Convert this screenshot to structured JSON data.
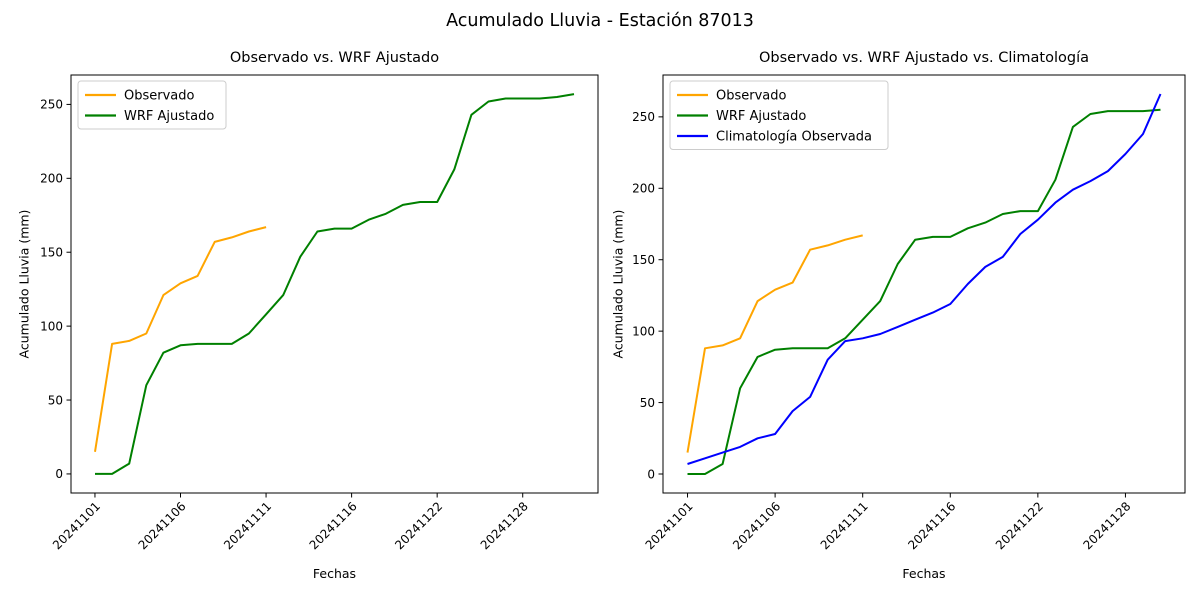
{
  "figure": {
    "title": "Acumulado Lluvia - Estación 87013",
    "background": "#ffffff"
  },
  "colors": {
    "observado": "#FFA500",
    "wrf_ajustado": "#008000",
    "climatologia": "#0000FF",
    "axes": "#000000",
    "legend_border": "#cccccc"
  },
  "chart_data": [
    {
      "type": "line",
      "title": "Observado vs. WRF Ajustado",
      "xlabel": "Fechas",
      "ylabel": "Acumulado Lluvia (mm)",
      "x_tick_indices": [
        0,
        5,
        10,
        15,
        20,
        25
      ],
      "x_tick_labels": [
        "20241101",
        "20241106",
        "20241111",
        "20241116",
        "20241122",
        "20241128"
      ],
      "y_ticks": [
        0,
        50,
        100,
        150,
        200,
        250
      ],
      "xlim": [
        -1.4,
        29.4
      ],
      "ylim": [
        -12.9,
        269.9
      ],
      "grid": false,
      "legend_position": "upper-left",
      "series": [
        {
          "name": "Observado",
          "color": "#FFA500",
          "x": [
            0,
            1,
            2,
            3,
            4,
            5,
            6,
            7,
            8,
            9,
            10
          ],
          "values": [
            15,
            88,
            90,
            95,
            121,
            129,
            134,
            157,
            160,
            164,
            167
          ]
        },
        {
          "name": "WRF Ajustado",
          "color": "#008000",
          "x": [
            0,
            1,
            2,
            3,
            4,
            5,
            6,
            7,
            8,
            9,
            10,
            11,
            12,
            13,
            14,
            15,
            16,
            17,
            18,
            19,
            20,
            21,
            22,
            23,
            24,
            25,
            26,
            27,
            28
          ],
          "values": [
            0,
            0,
            7,
            60,
            82,
            87,
            88,
            88,
            88,
            95,
            108,
            121,
            147,
            164,
            166,
            166,
            172,
            176,
            182,
            184,
            184,
            206,
            243,
            252,
            254,
            254,
            254,
            255,
            257
          ]
        }
      ]
    },
    {
      "type": "line",
      "title": "Observado vs. WRF Ajustado vs. Climatología",
      "xlabel": "Fechas",
      "ylabel": "Acumulado Lluvia (mm)",
      "x_tick_indices": [
        0,
        5,
        10,
        15,
        20,
        25
      ],
      "x_tick_labels": [
        "20241101",
        "20241106",
        "20241111",
        "20241116",
        "20241122",
        "20241128"
      ],
      "y_ticks": [
        0,
        50,
        100,
        150,
        200,
        250
      ],
      "xlim": [
        -1.4,
        28.4
      ],
      "ylim": [
        -13.3,
        279.3
      ],
      "grid": false,
      "legend_position": "upper-left",
      "series": [
        {
          "name": "Observado",
          "color": "#FFA500",
          "x": [
            0,
            1,
            2,
            3,
            4,
            5,
            6,
            7,
            8,
            9,
            10
          ],
          "values": [
            15,
            88,
            90,
            95,
            121,
            129,
            134,
            157,
            160,
            164,
            167
          ]
        },
        {
          "name": "WRF Ajustado",
          "color": "#008000",
          "x": [
            0,
            1,
            2,
            3,
            4,
            5,
            6,
            7,
            8,
            9,
            10,
            11,
            12,
            13,
            14,
            15,
            16,
            17,
            18,
            19,
            20,
            21,
            22,
            23,
            24,
            25,
            26,
            27
          ],
          "values": [
            0,
            0,
            7,
            60,
            82,
            87,
            88,
            88,
            88,
            95,
            108,
            121,
            147,
            164,
            166,
            166,
            172,
            176,
            182,
            184,
            184,
            206,
            243,
            252,
            254,
            254,
            254,
            255
          ]
        },
        {
          "name": "Climatología Observada",
          "color": "#0000FF",
          "x": [
            0,
            1,
            2,
            3,
            4,
            5,
            6,
            7,
            8,
            9,
            10,
            11,
            12,
            13,
            14,
            15,
            16,
            17,
            18,
            19,
            20,
            21,
            22,
            23,
            24,
            25,
            26,
            27
          ],
          "values": [
            7,
            11,
            15,
            19,
            25,
            28,
            44,
            54,
            80,
            93,
            95,
            98,
            103,
            108,
            113,
            119,
            133,
            145,
            152,
            168,
            178,
            190,
            199,
            205,
            212,
            224,
            238,
            266
          ]
        }
      ]
    }
  ]
}
